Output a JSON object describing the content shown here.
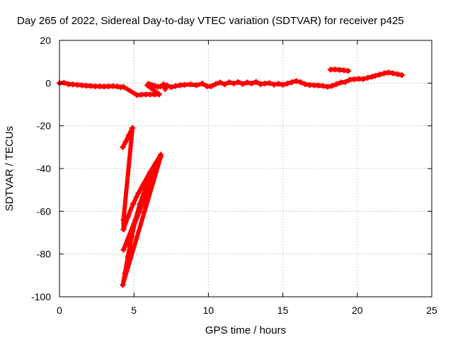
{
  "chart_data": {
    "type": "scatter",
    "title": "Day 265 of 2022, Sidereal Day-to-day VTEC variation (SDTVAR) for receiver p425",
    "xlabel": "GPS time / hours",
    "ylabel": "SDTVAR / TECUs",
    "xlim": [
      0,
      25
    ],
    "ylim": [
      -100,
      20
    ],
    "xticks": [
      0,
      5,
      10,
      15,
      20,
      25
    ],
    "yticks": [
      -100,
      -80,
      -60,
      -40,
      -20,
      0,
      20
    ],
    "grid": true,
    "marker": "plus",
    "color": "#ff0000",
    "series": [
      {
        "name": "baseline",
        "points": [
          [
            0.0,
            0.0
          ],
          [
            0.3,
            0.2
          ],
          [
            0.6,
            -0.5
          ],
          [
            0.9,
            -0.6
          ],
          [
            1.2,
            -0.8
          ],
          [
            1.5,
            -1.0
          ],
          [
            1.8,
            -1.2
          ],
          [
            2.1,
            -1.3
          ],
          [
            2.4,
            -1.5
          ],
          [
            2.7,
            -1.5
          ],
          [
            3.0,
            -1.6
          ],
          [
            3.3,
            -1.5
          ],
          [
            3.6,
            -1.4
          ],
          [
            3.9,
            -1.6
          ],
          [
            4.1,
            -1.9
          ],
          [
            4.3,
            -1.7
          ],
          [
            5.2,
            -5.6
          ],
          [
            5.5,
            -5.4
          ],
          [
            5.8,
            -5.3
          ],
          [
            6.1,
            -5.3
          ],
          [
            6.4,
            -5.3
          ],
          [
            6.7,
            -5.3
          ],
          [
            5.9,
            -1.0
          ],
          [
            6.0,
            -0.3
          ],
          [
            6.2,
            -0.9
          ],
          [
            6.4,
            -1.3
          ],
          [
            6.6,
            -1.7
          ],
          [
            6.8,
            -1.5
          ],
          [
            7.0,
            -0.5
          ],
          [
            7.1,
            -2.8
          ],
          [
            7.2,
            -1.0
          ],
          [
            7.5,
            -1.9
          ],
          [
            7.8,
            -1.4
          ],
          [
            8.1,
            -1.0
          ],
          [
            8.4,
            -0.8
          ],
          [
            8.8,
            -0.6
          ],
          [
            9.2,
            -1.0
          ],
          [
            9.6,
            -0.2
          ],
          [
            9.9,
            -1.5
          ],
          [
            10.2,
            -1.5
          ],
          [
            10.5,
            -0.4
          ],
          [
            10.8,
            0.3
          ],
          [
            11.1,
            -0.6
          ],
          [
            11.4,
            0.4
          ],
          [
            11.7,
            -0.2
          ],
          [
            12.0,
            0.5
          ],
          [
            12.3,
            -0.4
          ],
          [
            12.6,
            0.3
          ],
          [
            12.9,
            -0.2
          ],
          [
            13.2,
            0.6
          ],
          [
            13.5,
            -0.5
          ],
          [
            13.8,
            -0.2
          ],
          [
            14.1,
            0.0
          ],
          [
            14.4,
            -0.7
          ],
          [
            14.7,
            -0.3
          ],
          [
            15.0,
            -0.8
          ],
          [
            15.3,
            -0.2
          ],
          [
            15.6,
            0.4
          ],
          [
            15.9,
            1.0
          ],
          [
            16.2,
            0.4
          ],
          [
            16.5,
            -0.5
          ],
          [
            16.8,
            -0.9
          ],
          [
            17.1,
            -1.0
          ],
          [
            17.4,
            -1.1
          ],
          [
            17.7,
            -1.3
          ],
          [
            18.0,
            -1.7
          ],
          [
            18.3,
            -1.3
          ],
          [
            18.6,
            -0.5
          ],
          [
            18.9,
            0.3
          ],
          [
            19.2,
            0.5
          ],
          [
            19.5,
            1.6
          ],
          [
            19.8,
            1.8
          ],
          [
            20.1,
            2.0
          ],
          [
            20.4,
            1.9
          ],
          [
            20.7,
            2.5
          ],
          [
            21.0,
            3.0
          ],
          [
            21.2,
            3.4
          ],
          [
            21.5,
            4.0
          ],
          [
            21.8,
            4.6
          ],
          [
            22.1,
            5.0
          ],
          [
            22.4,
            4.6
          ],
          [
            22.7,
            4.2
          ],
          [
            23.0,
            3.7
          ]
        ]
      },
      {
        "name": "elevated segment",
        "points": [
          [
            18.2,
            6.3
          ],
          [
            18.5,
            6.4
          ],
          [
            18.8,
            6.2
          ],
          [
            19.1,
            6.0
          ],
          [
            19.4,
            5.7
          ]
        ]
      },
      {
        "name": "steep negative arcs",
        "points": [
          [
            4.25,
            -30.0
          ],
          [
            4.45,
            -27.5
          ],
          [
            4.65,
            -24.5
          ],
          [
            4.9,
            -21.0
          ],
          [
            4.3,
            -64.0
          ],
          [
            4.3,
            -68.5
          ],
          [
            4.6,
            -62.5
          ],
          [
            4.95,
            -56.5
          ],
          [
            5.3,
            -51.5
          ],
          [
            5.7,
            -46.5
          ],
          [
            6.1,
            -41.5
          ],
          [
            6.5,
            -37.0
          ],
          [
            6.8,
            -33.5
          ],
          [
            4.3,
            -78.0
          ],
          [
            4.6,
            -73.5
          ],
          [
            4.95,
            -67.5
          ],
          [
            5.35,
            -60.5
          ],
          [
            5.8,
            -52.5
          ],
          [
            6.2,
            -45.0
          ],
          [
            6.55,
            -38.5
          ],
          [
            6.8,
            -34.5
          ],
          [
            4.25,
            -94.5
          ],
          [
            4.4,
            -89.0
          ],
          [
            4.6,
            -81.0
          ],
          [
            4.85,
            -72.0
          ],
          [
            5.1,
            -64.0
          ],
          [
            5.4,
            -56.5
          ],
          [
            5.8,
            -49.0
          ],
          [
            6.2,
            -42.0
          ],
          [
            6.55,
            -37.5
          ]
        ]
      }
    ]
  }
}
